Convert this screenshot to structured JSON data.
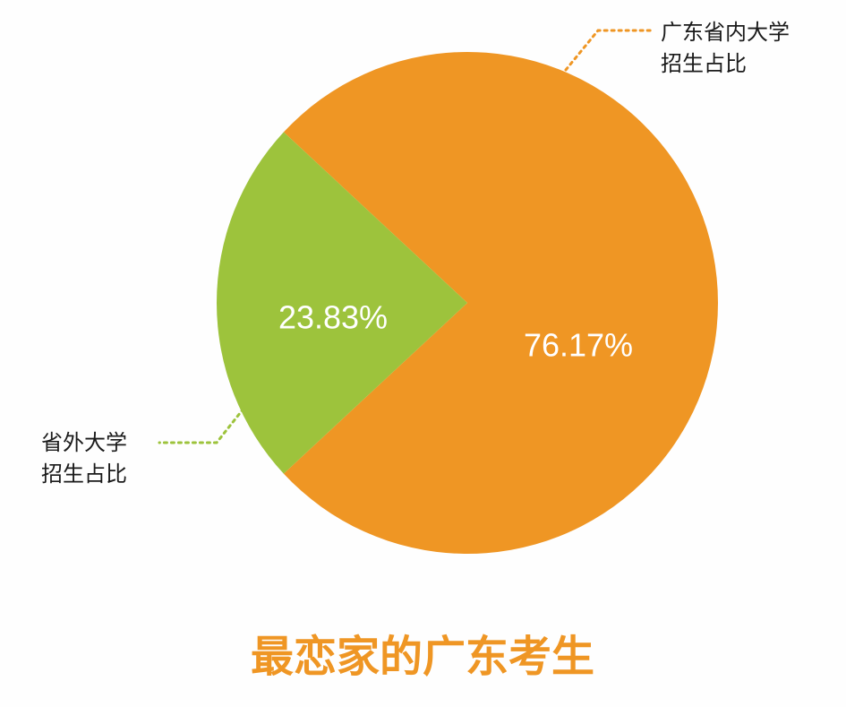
{
  "chart_data": {
    "type": "pie",
    "title": "最恋家的广东考生",
    "slices": [
      {
        "label_lines": [
          "广东省内大学",
          "招生占比"
        ],
        "value": 76.17,
        "value_text": "76.17%",
        "color": "#ef9624"
      },
      {
        "label_lines": [
          "省外大学",
          "招生占比"
        ],
        "value": 23.83,
        "value_text": "23.83%",
        "color": "#9dc33c"
      }
    ],
    "leader_line_style": "dotted"
  }
}
